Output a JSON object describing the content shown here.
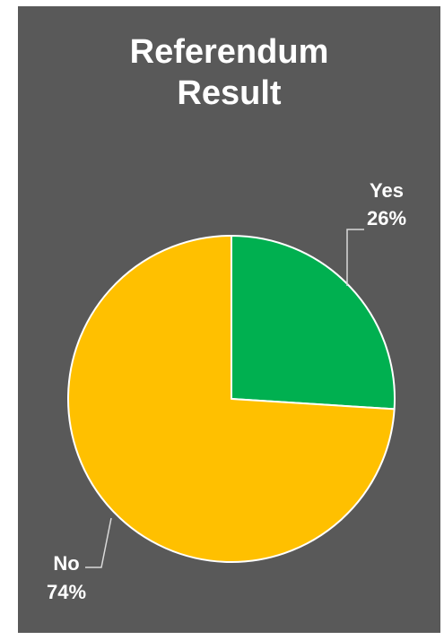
{
  "chart_data": {
    "type": "pie",
    "title": "Referendum Result",
    "title_lines": [
      "Referendum",
      "Result"
    ],
    "categories": [
      "Yes",
      "No"
    ],
    "values": [
      26,
      74
    ],
    "percent_labels": [
      "26%",
      "74%"
    ],
    "colors": [
      "#00b050",
      "#ffc000"
    ],
    "background": "#595959",
    "slice_border": "#ffffff",
    "legend": "none",
    "labels": "outside-with-leader-lines"
  }
}
